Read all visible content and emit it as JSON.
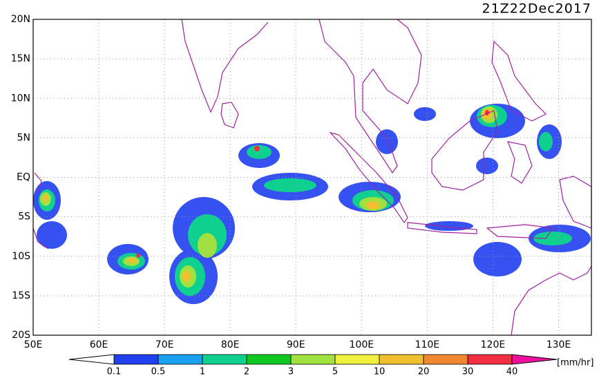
{
  "header": {
    "timestamp": "21Z22Dec2017"
  },
  "map": {
    "lat_labels": [
      "20N",
      "15N",
      "10N",
      "5N",
      "EQ",
      "5S",
      "10S",
      "15S",
      "20S"
    ],
    "lon_labels": [
      "50E",
      "60E",
      "70E",
      "80E",
      "90E",
      "100E",
      "110E",
      "120E",
      "130E"
    ]
  },
  "legend": {
    "unit": "[mm/hr]",
    "levels": [
      "0.1",
      "0.5",
      "1",
      "2",
      "3",
      "5",
      "10",
      "20",
      "30",
      "40"
    ],
    "colors": [
      "#2040f0",
      "#1aa0f0",
      "#10d090",
      "#10c820",
      "#a0e040",
      "#f0f040",
      "#f0c030",
      "#f08830",
      "#f03040",
      "#f010a0"
    ]
  }
}
